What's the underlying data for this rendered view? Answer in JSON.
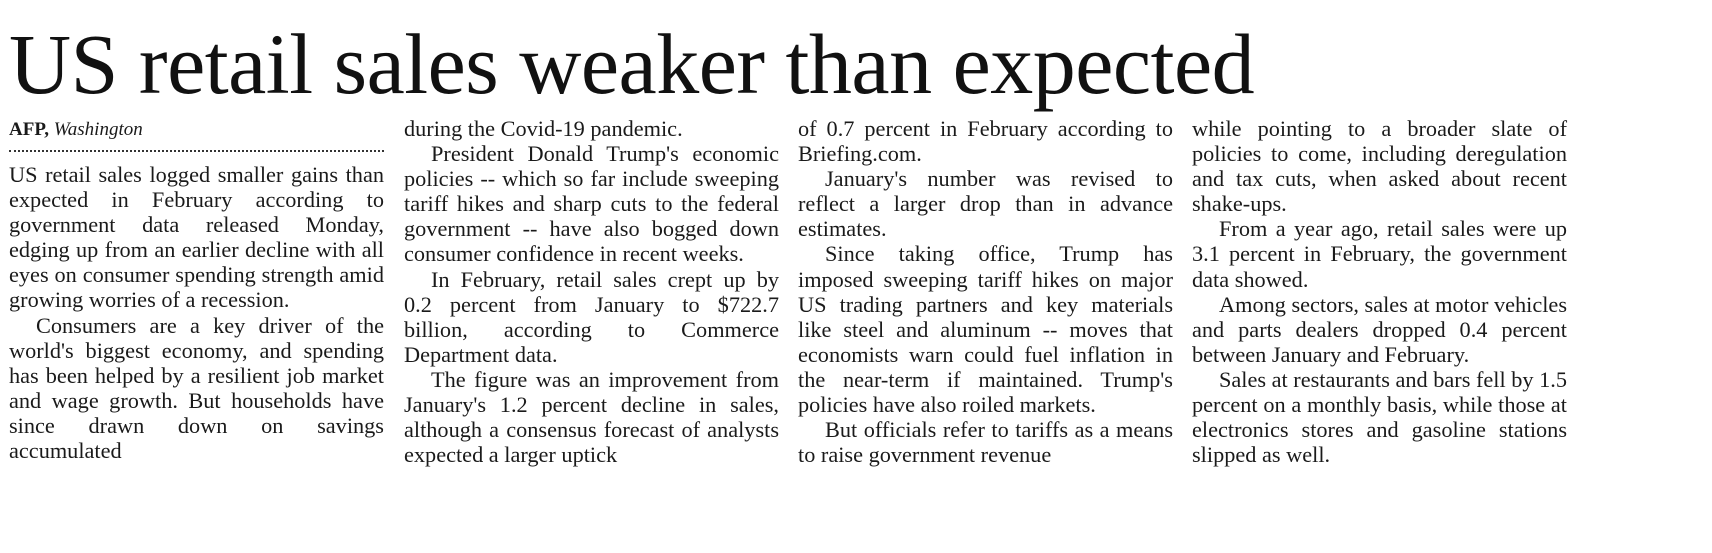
{
  "headline": "US retail sales weaker than expected",
  "byline": {
    "agency": "AFP,",
    "place": "Washington"
  },
  "columns": [
    {
      "paragraphs": [
        "US retail sales logged smaller gains than expected in February according to government data released Monday, edging up from an earlier decline with all eyes on consumer spending strength amid growing worries of a recession.",
        "Consumers are a key driver of the world's biggest economy, and spending has been helped by a resilient job market and wage growth. But households have since drawn down on savings accumulated"
      ]
    },
    {
      "paragraphs": [
        "during the Covid-19 pandemic.",
        "President Donald Trump's economic policies -- which so far include sweeping tariff hikes and sharp cuts to the federal government -- have also bogged down consumer confidence in recent weeks.",
        "In February, retail sales crept up by 0.2 percent from January to $722.7 billion, according to Commerce Department data.",
        "The figure was an improvement from January's 1.2 percent decline in sales, although a consensus forecast of analysts expected a larger uptick"
      ]
    },
    {
      "paragraphs": [
        "of 0.7 percent in February according to Briefing.com.",
        "January's number was revised to reflect a larger drop than in advance estimates.",
        "Since taking office, Trump has imposed sweeping tariff hikes on major US trading partners and key materials like steel and aluminum -- moves that economists warn could fuel inflation in the near-term if maintained. Trump's policies have also roiled markets.",
        "But officials refer to tariffs as a means to raise government revenue"
      ]
    },
    {
      "paragraphs": [
        "while pointing to a broader slate of policies to come, including deregulation and tax cuts, when asked about recent shake-ups.",
        "From a year ago, retail sales were up 3.1 percent in February, the government data showed.",
        "Among sectors, sales at motor vehicles and parts dealers dropped 0.4 percent between January and February.",
        "Sales at restaurants and bars fell by 1.5 percent on a monthly basis, while those at electronics stores and gasoline stations slipped as well."
      ]
    }
  ]
}
